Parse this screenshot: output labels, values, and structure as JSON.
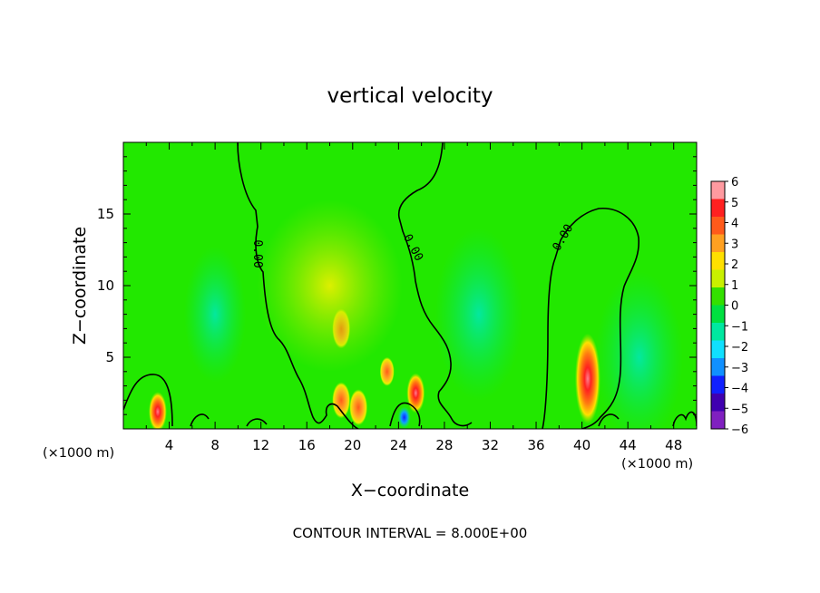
{
  "chart_data": {
    "type": "heatmap",
    "title": "vertical velocity",
    "xlabel": "X−coordinate",
    "ylabel": "Z−coordinate",
    "x_unit_label_left": "(×1000 m)",
    "x_unit_label_right": "(×1000 m)",
    "xlim": [
      0,
      50
    ],
    "ylim": [
      0,
      20
    ],
    "x_ticks": [
      4,
      8,
      12,
      16,
      20,
      24,
      28,
      32,
      36,
      40,
      44,
      48
    ],
    "y_ticks": [
      5,
      10,
      15
    ],
    "footer": "CONTOUR INTERVAL = 8.000E+00",
    "contour_label": "0.00",
    "colorbar": {
      "min": -6,
      "max": 6,
      "tick_labels": [
        "6",
        "5",
        "4",
        "3",
        "2",
        "1",
        "0",
        "−1",
        "−2",
        "−3",
        "−4",
        "−5",
        "−6"
      ],
      "colors": [
        "#ff9aa0",
        "#ff2020",
        "#ff5a1a",
        "#ffa020",
        "#ffe000",
        "#c8f000",
        "#33e000",
        "#00e040",
        "#00e8a0",
        "#10e0ff",
        "#1090ff",
        "#1020ff",
        "#4000b0",
        "#8020c0"
      ]
    },
    "features": [
      {
        "x": 3,
        "z": 1.2,
        "value": 5
      },
      {
        "x": 19,
        "z": 7,
        "value": 2
      },
      {
        "x": 19,
        "z": 2,
        "value": 4
      },
      {
        "x": 20.5,
        "z": 1.5,
        "value": 4
      },
      {
        "x": 23,
        "z": 4,
        "value": 3
      },
      {
        "x": 25.5,
        "z": 2.5,
        "value": 5
      },
      {
        "x": 24.5,
        "z": 0.8,
        "value": -5
      },
      {
        "x": 40.5,
        "z": 3.5,
        "value": 6
      },
      {
        "x": 18,
        "z": 10,
        "value": 1
      },
      {
        "x": 31,
        "z": 8,
        "value": -2
      },
      {
        "x": 45,
        "z": 5,
        "value": -2
      },
      {
        "x": 8,
        "z": 8,
        "value": -1
      }
    ]
  }
}
